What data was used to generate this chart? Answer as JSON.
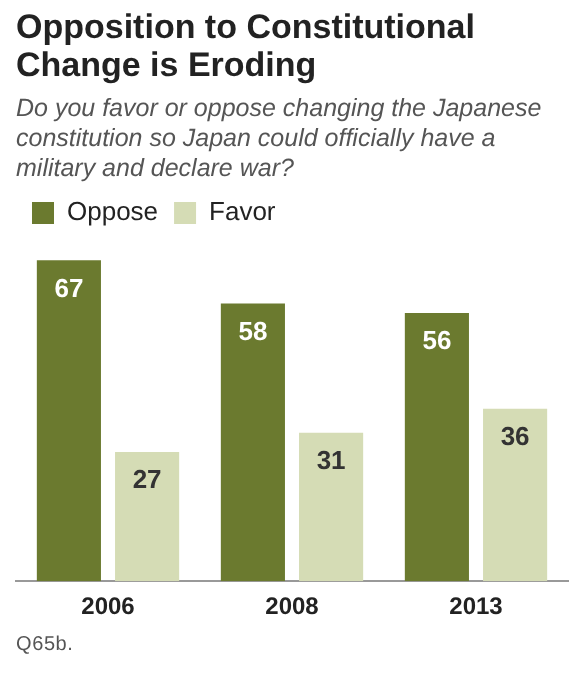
{
  "chart_data": {
    "type": "bar",
    "title": "Opposition to Constitutional Change is Eroding",
    "subtitle": "Do you favor or oppose changing the Japanese constitution so Japan could officially have a military and declare war?",
    "categories": [
      "2006",
      "2008",
      "2013"
    ],
    "series": [
      {
        "name": "Oppose",
        "color": "#6b7a2f",
        "values": [
          67,
          58,
          56
        ]
      },
      {
        "name": "Favor",
        "color": "#d5dcb5",
        "values": [
          27,
          31,
          36
        ]
      }
    ],
    "data_labels": true,
    "legend": "top left",
    "grid": false,
    "annotations": [
      "Q65b."
    ]
  }
}
